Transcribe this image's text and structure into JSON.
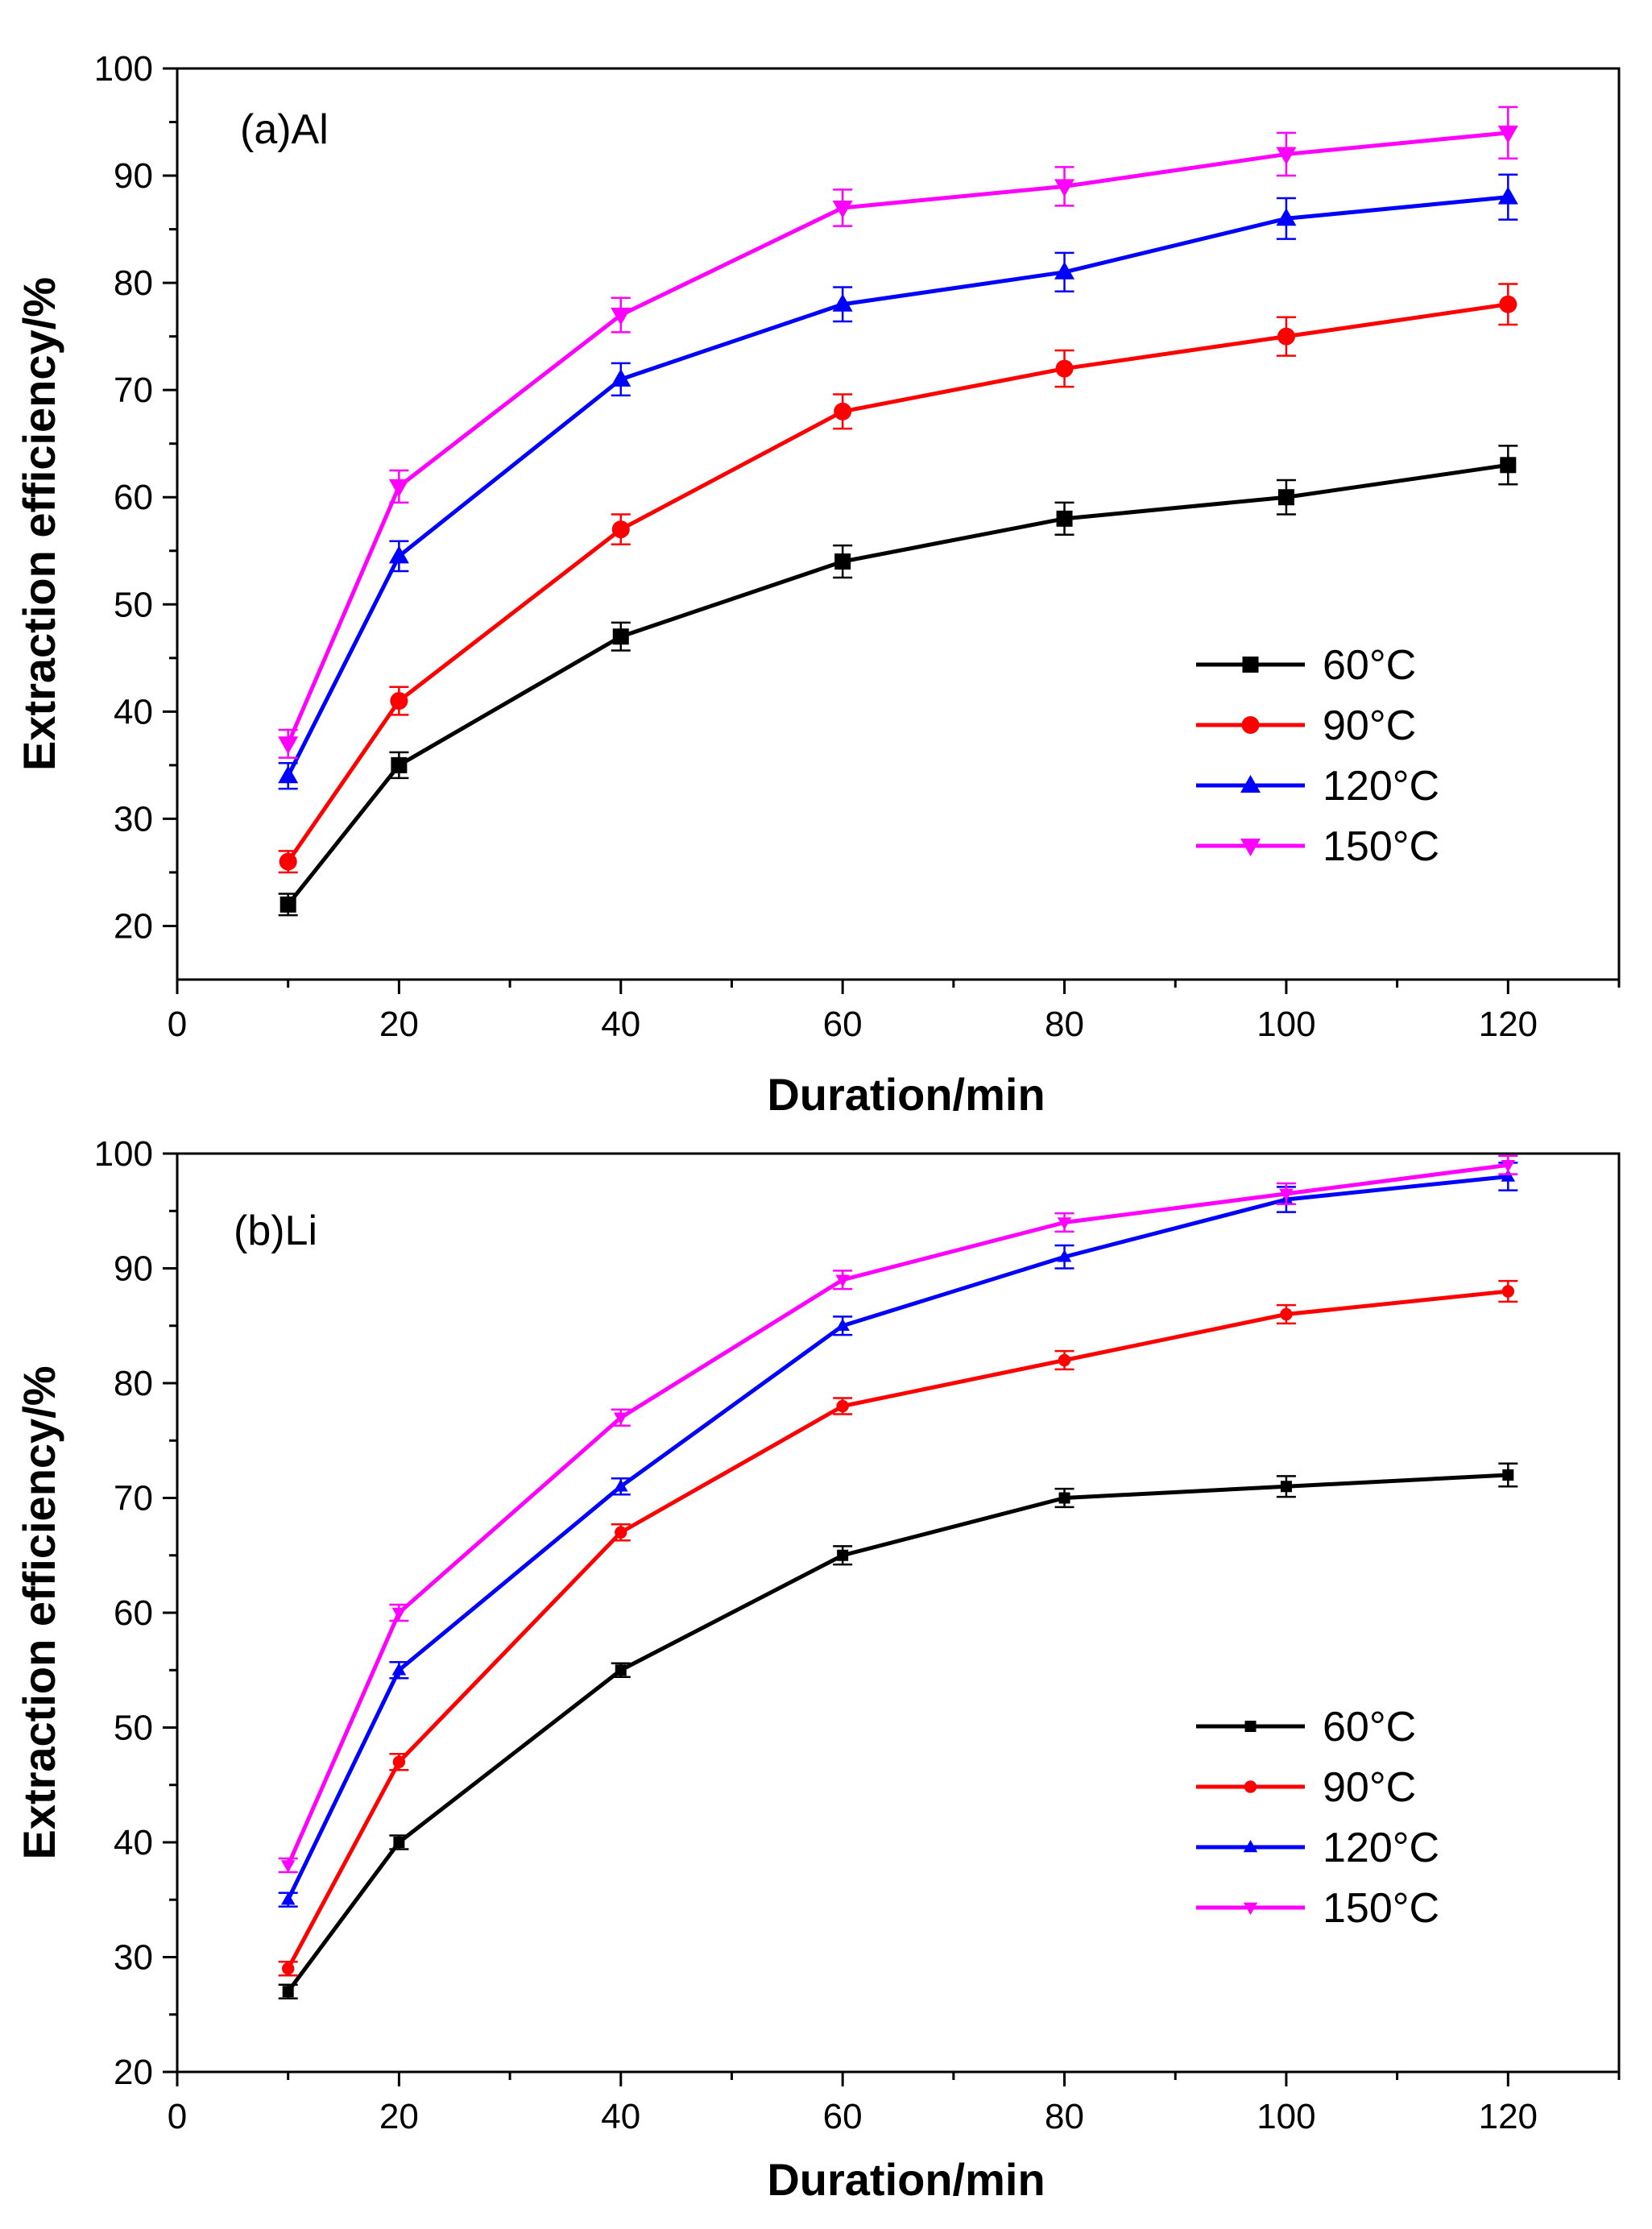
{
  "chart_data": [
    {
      "type": "line",
      "title": "(a)Al",
      "xlabel": "Duration/min",
      "ylabel": "Extraction efficiency/%",
      "xlim": [
        0,
        130
      ],
      "ylim": [
        15,
        100
      ],
      "xticks": [
        0,
        20,
        40,
        60,
        80,
        100,
        120
      ],
      "yticks": [
        20,
        30,
        40,
        50,
        60,
        70,
        80,
        90,
        100
      ],
      "x": [
        10,
        20,
        40,
        60,
        80,
        100,
        120
      ],
      "legend_position": "lower-right",
      "series": [
        {
          "name": "60°C",
          "color": "#000000",
          "marker": "square",
          "values": [
            22,
            35,
            47,
            54,
            58,
            60,
            63
          ],
          "errors": [
            1.0,
            1.2,
            1.3,
            1.5,
            1.5,
            1.6,
            1.8
          ]
        },
        {
          "name": "90°C",
          "color": "#ff0000",
          "marker": "circle",
          "values": [
            26,
            41,
            57,
            68,
            72,
            75,
            78
          ],
          "errors": [
            1.0,
            1.3,
            1.4,
            1.6,
            1.7,
            1.8,
            1.9
          ]
        },
        {
          "name": "120°C",
          "color": "#0000ff",
          "marker": "triangle-up",
          "values": [
            34,
            54.5,
            71,
            78,
            81,
            86,
            88
          ],
          "errors": [
            1.2,
            1.4,
            1.5,
            1.6,
            1.8,
            1.9,
            2.1
          ]
        },
        {
          "name": "150°C",
          "color": "#ff00ff",
          "marker": "triangle-down",
          "values": [
            37,
            61,
            77,
            87,
            89,
            92,
            94
          ],
          "errors": [
            1.3,
            1.5,
            1.6,
            1.7,
            1.8,
            2.0,
            2.4
          ]
        }
      ]
    },
    {
      "type": "line",
      "title": "(b)Li",
      "xlabel": "Duration/min",
      "ylabel": "Extraction efficiency/%",
      "xlim": [
        0,
        130
      ],
      "ylim": [
        20,
        100
      ],
      "xticks": [
        0,
        20,
        40,
        60,
        80,
        100,
        120
      ],
      "yticks": [
        20,
        30,
        40,
        50,
        60,
        70,
        80,
        90,
        100
      ],
      "x": [
        10,
        20,
        40,
        60,
        80,
        100,
        120
      ],
      "legend_position": "lower-right",
      "series": [
        {
          "name": "60°C",
          "color": "#000000",
          "marker": "square",
          "values": [
            27,
            40,
            55,
            65,
            70,
            71,
            72
          ],
          "errors": [
            0.6,
            0.6,
            0.6,
            0.8,
            0.8,
            0.9,
            1.0
          ]
        },
        {
          "name": "90°C",
          "color": "#ff0000",
          "marker": "circle",
          "values": [
            29,
            47,
            67,
            78,
            82,
            86,
            88
          ],
          "errors": [
            0.6,
            0.7,
            0.7,
            0.7,
            0.8,
            0.8,
            0.9
          ]
        },
        {
          "name": "120°C",
          "color": "#0000ff",
          "marker": "triangle-up",
          "values": [
            35,
            55,
            71,
            85,
            91,
            96,
            98
          ],
          "errors": [
            0.6,
            0.7,
            0.7,
            0.8,
            1.0,
            1.1,
            1.2
          ]
        },
        {
          "name": "150°C",
          "color": "#ff00ff",
          "marker": "triangle-down",
          "values": [
            38,
            60,
            77,
            89,
            94,
            96.5,
            99
          ],
          "errors": [
            0.6,
            0.7,
            0.7,
            0.8,
            0.8,
            0.9,
            0.8
          ]
        }
      ]
    }
  ]
}
